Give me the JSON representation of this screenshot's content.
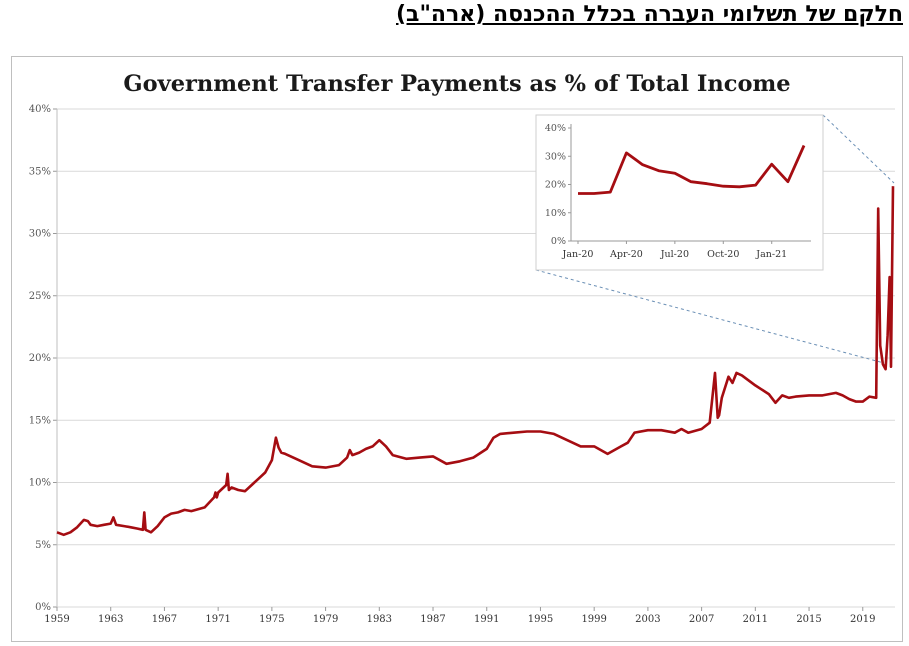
{
  "header": {
    "hebrew_title": "חלקם של תשלומי העברה בכלל ההכנסה (ארה\"ב)"
  },
  "colors": {
    "line": "#a50d12",
    "grid": "#d9d9d9",
    "connector": "#6a8fb5"
  },
  "chart_data": [
    {
      "type": "line",
      "title": "Government Transfer Payments as % of  Total Income",
      "xlabel": "",
      "ylabel": "",
      "x_ticks": [
        "1959",
        "1963",
        "1967",
        "1971",
        "1975",
        "1979",
        "1983",
        "1987",
        "1991",
        "1995",
        "1999",
        "2003",
        "2007",
        "2011",
        "2015",
        "2019"
      ],
      "y_ticks": [
        "0%",
        "5%",
        "10%",
        "15%",
        "20%",
        "25%",
        "30%",
        "35%",
        "40%"
      ],
      "xlim": [
        1959,
        2021.4
      ],
      "ylim": [
        0,
        40
      ],
      "grid": true,
      "series": [
        {
          "x": [
            1959,
            1959.5,
            1960,
            1960.5,
            1961,
            1961.3,
            1961.5,
            1962,
            1962.5,
            1963,
            1963.2,
            1963.4,
            1964,
            1964.5,
            1965,
            1965.4,
            1965.5,
            1965.6,
            1966,
            1966.5,
            1967,
            1967.5,
            1968,
            1968.5,
            1969,
            1970,
            1970.7,
            1970.8,
            1970.9,
            1971,
            1971.6,
            1971.7,
            1971.8,
            1972,
            1972.5,
            1973,
            1973.5,
            1974,
            1974.5,
            1975,
            1975.3,
            1975.5,
            1975.7,
            1976,
            1977,
            1978,
            1979,
            1980,
            1980.6,
            1980.8,
            1981,
            1981.5,
            1982,
            1982.5,
            1983,
            1983.5,
            1984,
            1985,
            1986,
            1987,
            1988,
            1989,
            1990,
            1991,
            1991.5,
            1992,
            1993,
            1994,
            1995,
            1996,
            1997,
            1998,
            1999,
            2000,
            2001,
            2001.5,
            2002,
            2003,
            2004,
            2005,
            2005.5,
            2006,
            2007,
            2007.6,
            2008,
            2008.2,
            2008.3,
            2008.5,
            2009,
            2009.3,
            2009.6,
            2010,
            2010.5,
            2011,
            2012,
            2012.5,
            2013,
            2013.5,
            2014,
            2015,
            2016,
            2017,
            2017.5,
            2018,
            2018.5,
            2019,
            2019.5,
            2020,
            2020.15,
            2020.3,
            2020.5,
            2020.7,
            2020.85,
            2021,
            2021.1,
            2021.25
          ],
          "y": [
            6.0,
            5.8,
            6.0,
            6.4,
            7.0,
            6.9,
            6.6,
            6.5,
            6.6,
            6.7,
            7.2,
            6.6,
            6.5,
            6.4,
            6.3,
            6.2,
            7.6,
            6.2,
            6.0,
            6.5,
            7.2,
            7.5,
            7.6,
            7.8,
            7.7,
            8.0,
            8.8,
            9.2,
            8.8,
            9.2,
            9.8,
            10.7,
            9.4,
            9.6,
            9.4,
            9.3,
            9.8,
            10.3,
            10.8,
            11.8,
            13.6,
            12.8,
            12.4,
            12.3,
            11.8,
            11.3,
            11.2,
            11.4,
            12.0,
            12.6,
            12.2,
            12.4,
            12.7,
            12.9,
            13.4,
            12.9,
            12.2,
            11.9,
            12.0,
            12.1,
            11.5,
            11.7,
            12.0,
            12.7,
            13.6,
            13.9,
            14.0,
            14.1,
            14.1,
            13.9,
            13.4,
            12.9,
            12.9,
            12.3,
            12.9,
            13.2,
            14.0,
            14.2,
            14.2,
            14.0,
            14.3,
            14.0,
            14.3,
            14.8,
            18.8,
            15.2,
            15.4,
            16.8,
            18.5,
            18.0,
            18.8,
            18.6,
            18.2,
            17.8,
            17.1,
            16.4,
            17.0,
            16.8,
            16.9,
            17.0,
            17.0,
            17.2,
            17.0,
            16.7,
            16.5,
            16.5,
            16.9,
            16.8,
            32.0,
            21.0,
            19.5,
            19.1,
            21.8,
            26.5,
            19.3,
            33.8
          ]
        }
      ]
    },
    {
      "type": "line",
      "title": "",
      "inset": true,
      "x_ticks": [
        "Jan-20",
        "Apr-20",
        "Jul-20",
        "Oct-20",
        "Jan-21"
      ],
      "y_ticks": [
        "0%",
        "10%",
        "20%",
        "30%",
        "40%"
      ],
      "ylim": [
        0,
        40
      ],
      "series": [
        {
          "x": [
            "2020-01",
            "2020-02",
            "2020-03",
            "2020-04",
            "2020-05",
            "2020-06",
            "2020-07",
            "2020-08",
            "2020-09",
            "2020-10",
            "2020-11",
            "2020-12",
            "2021-01",
            "2021-02",
            "2021-03"
          ],
          "y": [
            16.8,
            16.8,
            17.3,
            31.2,
            27.0,
            24.9,
            24.0,
            21.0,
            20.3,
            19.4,
            19.2,
            19.8,
            27.2,
            21.0,
            33.8
          ]
        }
      ]
    }
  ]
}
